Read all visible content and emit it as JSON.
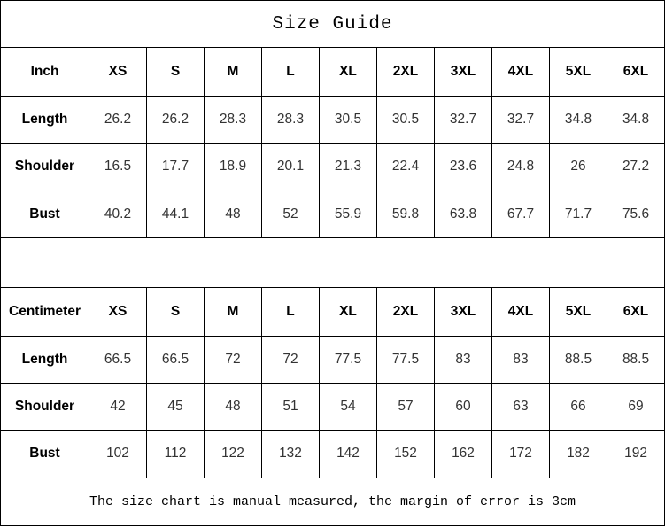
{
  "title": "Size Guide",
  "footer_note": "The size chart is manual measured, the margin of error is 3cm",
  "colors": {
    "background": "#ffffff",
    "border": "#000000",
    "header_text": "#000000",
    "value_text": "#333333"
  },
  "tables": [
    {
      "unit_label": "Inch",
      "sizes": [
        "XS",
        "S",
        "M",
        "L",
        "XL",
        "2XL",
        "3XL",
        "4XL",
        "5XL",
        "6XL"
      ],
      "rows": [
        {
          "label": "Length",
          "values": [
            "26.2",
            "26.2",
            "28.3",
            "28.3",
            "30.5",
            "30.5",
            "32.7",
            "32.7",
            "34.8",
            "34.8"
          ]
        },
        {
          "label": "Shoulder",
          "values": [
            "16.5",
            "17.7",
            "18.9",
            "20.1",
            "21.3",
            "22.4",
            "23.6",
            "24.8",
            "26",
            "27.2"
          ]
        },
        {
          "label": "Bust",
          "values": [
            "40.2",
            "44.1",
            "48",
            "52",
            "55.9",
            "59.8",
            "63.8",
            "67.7",
            "71.7",
            "75.6"
          ]
        }
      ]
    },
    {
      "unit_label": "Centimeter",
      "sizes": [
        "XS",
        "S",
        "M",
        "L",
        "XL",
        "2XL",
        "3XL",
        "4XL",
        "5XL",
        "6XL"
      ],
      "rows": [
        {
          "label": "Length",
          "values": [
            "66.5",
            "66.5",
            "72",
            "72",
            "77.5",
            "77.5",
            "83",
            "83",
            "88.5",
            "88.5"
          ]
        },
        {
          "label": "Shoulder",
          "values": [
            "42",
            "45",
            "48",
            "51",
            "54",
            "57",
            "60",
            "63",
            "66",
            "69"
          ]
        },
        {
          "label": "Bust",
          "values": [
            "102",
            "112",
            "122",
            "132",
            "142",
            "152",
            "162",
            "172",
            "182",
            "192"
          ]
        }
      ]
    }
  ],
  "chart_data": [
    {
      "type": "table",
      "title": "Size Guide",
      "unit": "Inch",
      "columns": [
        "Inch",
        "XS",
        "S",
        "M",
        "L",
        "XL",
        "2XL",
        "3XL",
        "4XL",
        "5XL",
        "6XL"
      ],
      "rows": [
        [
          "Length",
          26.2,
          26.2,
          28.3,
          28.3,
          30.5,
          30.5,
          32.7,
          32.7,
          34.8,
          34.8
        ],
        [
          "Shoulder",
          16.5,
          17.7,
          18.9,
          20.1,
          21.3,
          22.4,
          23.6,
          24.8,
          26,
          27.2
        ],
        [
          "Bust",
          40.2,
          44.1,
          48,
          52,
          55.9,
          59.8,
          63.8,
          67.7,
          71.7,
          75.6
        ]
      ]
    },
    {
      "type": "table",
      "title": "Size Guide",
      "unit": "Centimeter",
      "columns": [
        "Centimeter",
        "XS",
        "S",
        "M",
        "L",
        "XL",
        "2XL",
        "3XL",
        "4XL",
        "5XL",
        "6XL"
      ],
      "rows": [
        [
          "Length",
          66.5,
          66.5,
          72,
          72,
          77.5,
          77.5,
          83,
          83,
          88.5,
          88.5
        ],
        [
          "Shoulder",
          42,
          45,
          48,
          51,
          54,
          57,
          60,
          63,
          66,
          69
        ],
        [
          "Bust",
          102,
          112,
          122,
          132,
          142,
          152,
          162,
          172,
          182,
          192
        ]
      ],
      "note": "The size chart is manual measured, the margin of error is 3cm"
    }
  ]
}
